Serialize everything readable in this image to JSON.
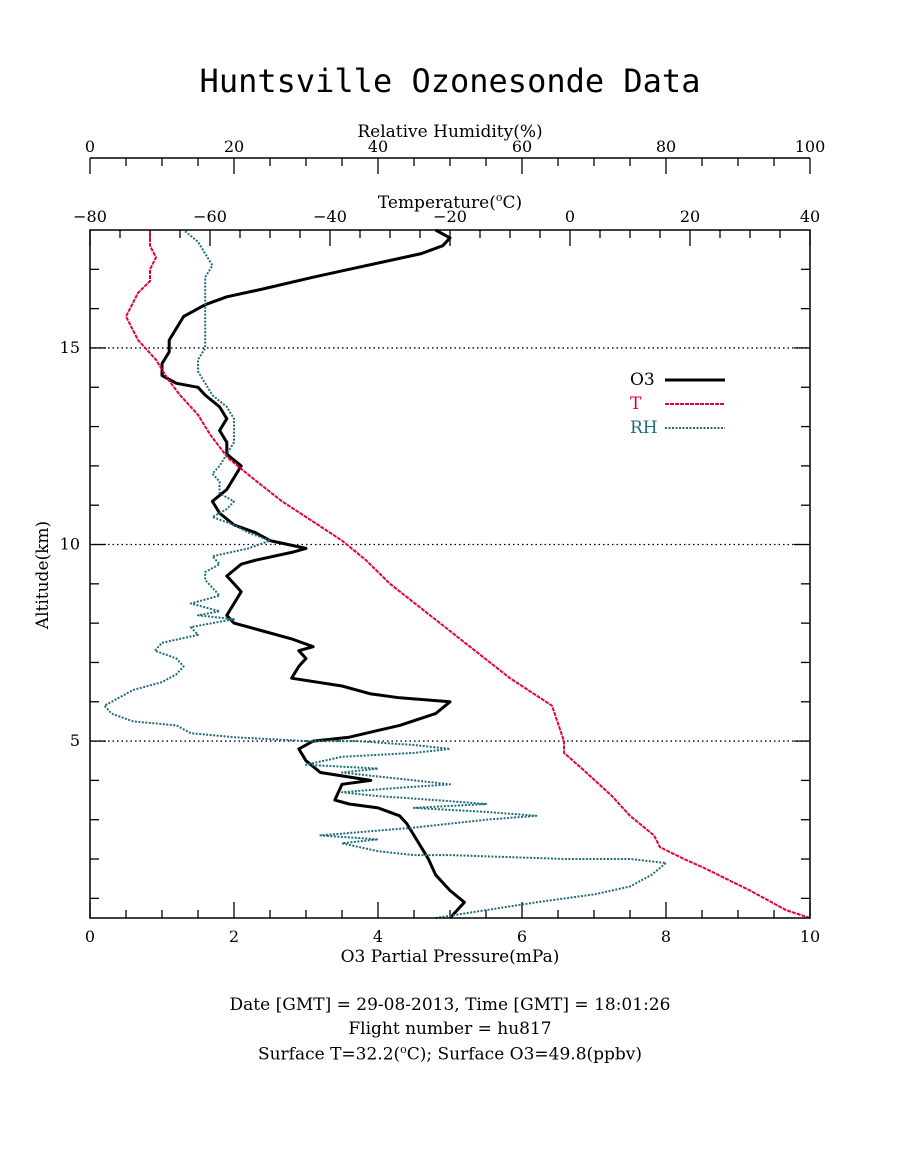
{
  "chart_data": {
    "type": "line",
    "title": "Huntsville Ozonesonde Data",
    "ylabel": "Altitude(km)",
    "ylim": [
      0.5,
      18
    ],
    "yticks": [
      "5",
      "10",
      "15"
    ],
    "y_reference_lines": [
      5,
      10,
      15
    ],
    "axes": {
      "o3": {
        "label": "O3 Partial Pressure(mPa)",
        "range": [
          0,
          10
        ],
        "ticks": [
          "0",
          "2",
          "4",
          "6",
          "8",
          "10"
        ]
      },
      "temperature": {
        "label_main": "Temperature(",
        "label_sup": "o",
        "label_end": "C)",
        "range": [
          -80,
          40
        ],
        "ticks": [
          "−80",
          "−60",
          "−40",
          "−20",
          "0",
          "20",
          "40"
        ]
      },
      "rh": {
        "label": "Relative Humidity(%)",
        "range": [
          0,
          100
        ],
        "ticks": [
          "0",
          "20",
          "40",
          "60",
          "80",
          "100"
        ]
      }
    },
    "legend": {
      "placement": "right",
      "entries": [
        "O3",
        "T",
        "RH"
      ]
    },
    "series": [
      {
        "name": "O3",
        "axis": "o3",
        "color": "#000000",
        "points": [
          [
            5.0,
            0.5
          ],
          [
            5.1,
            0.7
          ],
          [
            5.2,
            0.9
          ],
          [
            5.0,
            1.2
          ],
          [
            4.8,
            1.6
          ],
          [
            4.7,
            2.0
          ],
          [
            4.6,
            2.3
          ],
          [
            4.5,
            2.6
          ],
          [
            4.4,
            2.9
          ],
          [
            4.3,
            3.1
          ],
          [
            4.0,
            3.3
          ],
          [
            3.6,
            3.4
          ],
          [
            3.4,
            3.5
          ],
          [
            3.5,
            3.9
          ],
          [
            3.9,
            4.0
          ],
          [
            3.2,
            4.2
          ],
          [
            3.0,
            4.5
          ],
          [
            2.9,
            4.8
          ],
          [
            3.1,
            5.0
          ],
          [
            3.6,
            5.1
          ],
          [
            4.3,
            5.4
          ],
          [
            4.8,
            5.7
          ],
          [
            5.0,
            6.0
          ],
          [
            4.3,
            6.1
          ],
          [
            3.9,
            6.2
          ],
          [
            3.5,
            6.4
          ],
          [
            2.8,
            6.6
          ],
          [
            2.9,
            6.9
          ],
          [
            3.0,
            7.1
          ],
          [
            2.9,
            7.3
          ],
          [
            3.1,
            7.4
          ],
          [
            2.8,
            7.6
          ],
          [
            2.4,
            7.8
          ],
          [
            2.0,
            8.0
          ],
          [
            1.9,
            8.2
          ],
          [
            2.0,
            8.5
          ],
          [
            2.1,
            8.8
          ],
          [
            2.0,
            9.0
          ],
          [
            1.9,
            9.2
          ],
          [
            2.1,
            9.5
          ],
          [
            2.3,
            9.6
          ],
          [
            2.8,
            9.8
          ],
          [
            3.0,
            9.9
          ],
          [
            2.5,
            10.1
          ],
          [
            2.3,
            10.3
          ],
          [
            2.0,
            10.5
          ],
          [
            1.8,
            10.8
          ],
          [
            1.7,
            11.1
          ],
          [
            1.9,
            11.4
          ],
          [
            2.0,
            11.7
          ],
          [
            2.1,
            12.0
          ],
          [
            1.9,
            12.3
          ],
          [
            1.9,
            12.6
          ],
          [
            1.8,
            12.9
          ],
          [
            1.9,
            13.2
          ],
          [
            1.8,
            13.5
          ],
          [
            1.6,
            13.8
          ],
          [
            1.5,
            14.0
          ],
          [
            1.2,
            14.1
          ],
          [
            1.0,
            14.3
          ],
          [
            1.0,
            14.6
          ],
          [
            1.1,
            14.9
          ],
          [
            1.1,
            15.2
          ],
          [
            1.2,
            15.5
          ],
          [
            1.3,
            15.8
          ],
          [
            1.6,
            16.1
          ],
          [
            1.9,
            16.3
          ],
          [
            2.4,
            16.5
          ],
          [
            3.1,
            16.8
          ],
          [
            3.6,
            17.0
          ],
          [
            4.1,
            17.2
          ],
          [
            4.6,
            17.4
          ],
          [
            4.9,
            17.6
          ],
          [
            5.0,
            17.8
          ],
          [
            4.8,
            18.0
          ]
        ]
      },
      {
        "name": "T",
        "axis": "temperature",
        "color": "#e8003a",
        "points": [
          [
            40,
            0.5
          ],
          [
            36,
            0.7
          ],
          [
            30,
            1.2
          ],
          [
            22,
            1.8
          ],
          [
            19,
            2.0
          ],
          [
            15,
            2.3
          ],
          [
            14,
            2.6
          ],
          [
            10,
            3.1
          ],
          [
            7,
            3.6
          ],
          [
            2,
            4.3
          ],
          [
            -1,
            4.7
          ],
          [
            -1,
            5.0
          ],
          [
            -3,
            5.9
          ],
          [
            -5,
            6.1
          ],
          [
            -10,
            6.6
          ],
          [
            -15,
            7.2
          ],
          [
            -20,
            7.8
          ],
          [
            -25,
            8.4
          ],
          [
            -30,
            9.0
          ],
          [
            -34,
            9.6
          ],
          [
            -38,
            10.1
          ],
          [
            -43,
            10.6
          ],
          [
            -48,
            11.1
          ],
          [
            -53,
            11.7
          ],
          [
            -57,
            12.2
          ],
          [
            -60,
            12.8
          ],
          [
            -62,
            13.3
          ],
          [
            -65,
            13.8
          ],
          [
            -67,
            14.2
          ],
          [
            -69,
            14.7
          ],
          [
            -72,
            15.2
          ],
          [
            -73,
            15.5
          ],
          [
            -74,
            15.8
          ],
          [
            -73,
            16.1
          ],
          [
            -72,
            16.4
          ],
          [
            -70,
            16.7
          ],
          [
            -70,
            17.0
          ],
          [
            -69,
            17.3
          ],
          [
            -70,
            17.6
          ],
          [
            -70,
            18.0
          ]
        ]
      },
      {
        "name": "RH",
        "axis": "rh",
        "color": "#1f6e7a",
        "points": [
          [
            48,
            0.5
          ],
          [
            55,
            0.7
          ],
          [
            62,
            0.9
          ],
          [
            70,
            1.1
          ],
          [
            75,
            1.3
          ],
          [
            78,
            1.6
          ],
          [
            80,
            1.9
          ],
          [
            75,
            2.0
          ],
          [
            66,
            2.0
          ],
          [
            50,
            2.1
          ],
          [
            45,
            2.1
          ],
          [
            40,
            2.2
          ],
          [
            35,
            2.4
          ],
          [
            40,
            2.5
          ],
          [
            32,
            2.6
          ],
          [
            45,
            2.8
          ],
          [
            55,
            3.0
          ],
          [
            62,
            3.1
          ],
          [
            55,
            3.2
          ],
          [
            45,
            3.3
          ],
          [
            55,
            3.4
          ],
          [
            48,
            3.5
          ],
          [
            40,
            3.6
          ],
          [
            35,
            3.7
          ],
          [
            42,
            3.8
          ],
          [
            50,
            3.9
          ],
          [
            40,
            4.1
          ],
          [
            35,
            4.2
          ],
          [
            40,
            4.3
          ],
          [
            30,
            4.4
          ],
          [
            35,
            4.6
          ],
          [
            45,
            4.7
          ],
          [
            50,
            4.8
          ],
          [
            45,
            4.9
          ],
          [
            37,
            5.0
          ],
          [
            30,
            5.0
          ],
          [
            20,
            5.1
          ],
          [
            14,
            5.2
          ],
          [
            12,
            5.4
          ],
          [
            6,
            5.5
          ],
          [
            3,
            5.7
          ],
          [
            2,
            5.9
          ],
          [
            4,
            6.1
          ],
          [
            6,
            6.3
          ],
          [
            10,
            6.5
          ],
          [
            12,
            6.7
          ],
          [
            13,
            6.9
          ],
          [
            12,
            7.1
          ],
          [
            9,
            7.3
          ],
          [
            10,
            7.5
          ],
          [
            15,
            7.7
          ],
          [
            14,
            7.9
          ],
          [
            20,
            8.1
          ],
          [
            15,
            8.2
          ],
          [
            18,
            8.3
          ],
          [
            14,
            8.5
          ],
          [
            18,
            8.7
          ],
          [
            17,
            8.9
          ],
          [
            16,
            9.1
          ],
          [
            16,
            9.3
          ],
          [
            18,
            9.5
          ],
          [
            17,
            9.7
          ],
          [
            22,
            9.9
          ],
          [
            25,
            10.1
          ],
          [
            22,
            10.3
          ],
          [
            20,
            10.5
          ],
          [
            17,
            10.7
          ],
          [
            19,
            10.9
          ],
          [
            20,
            11.1
          ],
          [
            18,
            11.3
          ],
          [
            18,
            11.6
          ],
          [
            17,
            11.8
          ],
          [
            18,
            12.0
          ],
          [
            19,
            12.3
          ],
          [
            20,
            12.6
          ],
          [
            20,
            12.9
          ],
          [
            20,
            13.2
          ],
          [
            19,
            13.5
          ],
          [
            17,
            13.8
          ],
          [
            16,
            14.1
          ],
          [
            15,
            14.4
          ],
          [
            15,
            14.7
          ],
          [
            16,
            15.0
          ],
          [
            16,
            15.3
          ],
          [
            16,
            15.6
          ],
          [
            16,
            15.9
          ],
          [
            16,
            16.2
          ],
          [
            16,
            16.5
          ],
          [
            16,
            16.8
          ],
          [
            17,
            17.1
          ],
          [
            16,
            17.4
          ],
          [
            15,
            17.7
          ],
          [
            13,
            18.0
          ]
        ]
      }
    ]
  },
  "footer": {
    "line1": "Date [GMT] = 29-08-2013,  Time [GMT] = 18:01:26",
    "line2": "Flight number = hu817",
    "line3_a": "Surface T=32.2(",
    "line3_sup": "o",
    "line3_b": "C); Surface O3=49.8(ppbv)"
  }
}
